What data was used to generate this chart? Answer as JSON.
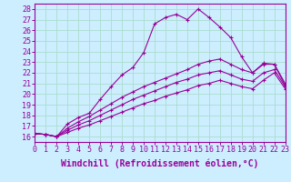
{
  "xlabel": "Windchill (Refroidissement éolien,°C)",
  "ylabel": "",
  "background_color": "#cceeff",
  "line_color": "#990099",
  "grid_color": "#aaddcc",
  "x_ticks": [
    0,
    1,
    2,
    3,
    4,
    5,
    6,
    7,
    8,
    9,
    10,
    11,
    12,
    13,
    14,
    15,
    16,
    17,
    18,
    19,
    20,
    21,
    22,
    23
  ],
  "y_ticks": [
    16,
    17,
    18,
    19,
    20,
    21,
    22,
    23,
    24,
    25,
    26,
    27,
    28
  ],
  "xlim": [
    0,
    23
  ],
  "ylim": [
    15.5,
    28.5
  ],
  "line1_x": [
    0,
    1,
    2,
    3,
    4,
    5,
    6,
    7,
    8,
    9,
    10,
    11,
    12,
    13,
    14,
    15,
    16,
    17,
    18,
    19,
    20,
    21,
    22,
    23
  ],
  "line1_y": [
    16.3,
    16.2,
    16.0,
    17.2,
    17.8,
    18.2,
    19.5,
    20.7,
    21.8,
    22.5,
    23.9,
    26.6,
    27.2,
    27.5,
    27.0,
    28.0,
    27.2,
    26.3,
    25.3,
    23.5,
    22.0,
    22.8,
    22.8,
    20.8
  ],
  "line2_x": [
    0,
    1,
    2,
    3,
    4,
    5,
    6,
    7,
    8,
    9,
    10,
    11,
    12,
    13,
    14,
    15,
    16,
    17,
    18,
    19,
    20,
    21,
    22,
    23
  ],
  "line2_y": [
    16.3,
    16.2,
    16.0,
    16.8,
    17.4,
    17.9,
    18.5,
    19.1,
    19.7,
    20.2,
    20.7,
    21.1,
    21.5,
    21.9,
    22.3,
    22.8,
    23.1,
    23.3,
    22.8,
    22.3,
    22.0,
    22.9,
    22.8,
    21.0
  ],
  "line3_x": [
    0,
    1,
    2,
    3,
    4,
    5,
    6,
    7,
    8,
    9,
    10,
    11,
    12,
    13,
    14,
    15,
    16,
    17,
    18,
    19,
    20,
    21,
    22,
    23
  ],
  "line3_y": [
    16.3,
    16.2,
    16.0,
    16.6,
    17.1,
    17.5,
    18.0,
    18.5,
    19.0,
    19.5,
    19.9,
    20.3,
    20.7,
    21.1,
    21.4,
    21.8,
    22.0,
    22.2,
    21.8,
    21.4,
    21.2,
    22.0,
    22.3,
    20.7
  ],
  "line4_x": [
    0,
    1,
    2,
    3,
    4,
    5,
    6,
    7,
    8,
    9,
    10,
    11,
    12,
    13,
    14,
    15,
    16,
    17,
    18,
    19,
    20,
    21,
    22,
    23
  ],
  "line4_y": [
    16.3,
    16.2,
    16.0,
    16.4,
    16.8,
    17.1,
    17.5,
    17.9,
    18.3,
    18.7,
    19.1,
    19.4,
    19.8,
    20.1,
    20.4,
    20.8,
    21.0,
    21.3,
    21.0,
    20.7,
    20.5,
    21.3,
    22.0,
    20.5
  ],
  "marker": "+",
  "marker_size": 3,
  "font_family": "monospace",
  "tick_fontsize": 6,
  "label_fontsize": 7
}
